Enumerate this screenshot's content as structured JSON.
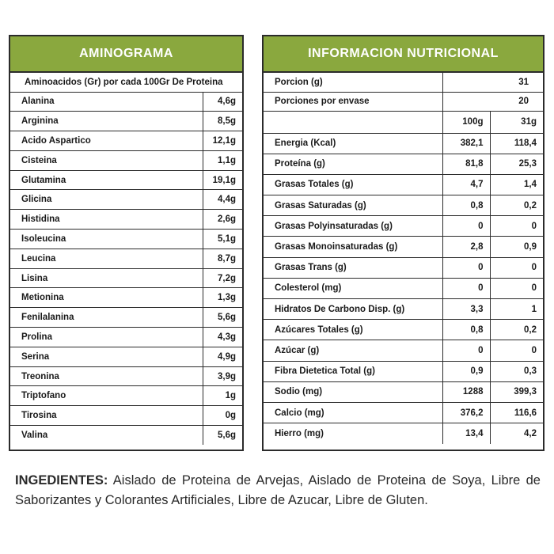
{
  "aminograma": {
    "title": "AMINOGRAMA",
    "subtitle": "Aminoacidos (Gr) por cada 100Gr De Proteina",
    "rows": [
      {
        "name": "Alanina",
        "value": "4,6g"
      },
      {
        "name": "Arginina",
        "value": "8,5g"
      },
      {
        "name": "Acido Aspartico",
        "value": "12,1g"
      },
      {
        "name": "Cisteina",
        "value": "1,1g"
      },
      {
        "name": "Glutamina",
        "value": "19,1g"
      },
      {
        "name": "Glicina",
        "value": "4,4g"
      },
      {
        "name": "Histidina",
        "value": "2,6g"
      },
      {
        "name": "Isoleucina",
        "value": "5,1g"
      },
      {
        "name": "Leucina",
        "value": "8,7g"
      },
      {
        "name": "Lisina",
        "value": "7,2g"
      },
      {
        "name": "Metionina",
        "value": "1,3g"
      },
      {
        "name": "Fenilalanina",
        "value": "5,6g"
      },
      {
        "name": "Prolina",
        "value": "4,3g"
      },
      {
        "name": "Serina",
        "value": "4,9g"
      },
      {
        "name": "Treonina",
        "value": "3,9g"
      },
      {
        "name": "Triptofano",
        "value": "1g"
      },
      {
        "name": "Tirosina",
        "value": "0g"
      },
      {
        "name": "Valina",
        "value": "5,6g"
      }
    ]
  },
  "nutricional": {
    "title": "INFORMACION NUTRICIONAL",
    "porcion_label": "Porcion (g)",
    "porcion_value": "31",
    "porciones_label": "Porciones por envase",
    "porciones_value": "20",
    "col1_header": "100g",
    "col2_header": "31g",
    "rows": [
      {
        "name": "Energia (Kcal)",
        "v100": "382,1",
        "v31": "118,4"
      },
      {
        "name": "Proteína (g)",
        "v100": "81,8",
        "v31": "25,3"
      },
      {
        "name": "Grasas Totales (g)",
        "v100": "4,7",
        "v31": "1,4"
      },
      {
        "name": "Grasas Saturadas (g)",
        "v100": "0,8",
        "v31": "0,2"
      },
      {
        "name": "Grasas Polyinsaturadas (g)",
        "v100": "0",
        "v31": "0"
      },
      {
        "name": "Grasas Monoinsaturadas (g)",
        "v100": "2,8",
        "v31": "0,9"
      },
      {
        "name": "Grasas Trans (g)",
        "v100": "0",
        "v31": "0"
      },
      {
        "name": "Colesterol (mg)",
        "v100": "0",
        "v31": "0"
      },
      {
        "name": "Hidratos De Carbono Disp. (g)",
        "v100": "3,3",
        "v31": "1"
      },
      {
        "name": "Azúcares Totales (g)",
        "v100": "0,8",
        "v31": "0,2"
      },
      {
        "name": "Azúcar (g)",
        "v100": "0",
        "v31": "0"
      },
      {
        "name": "Fibra Dietetica Total (g)",
        "v100": "0,9",
        "v31": "0,3"
      },
      {
        "name": "Sodio (mg)",
        "v100": "1288",
        "v31": "399,3"
      },
      {
        "name": "Calcio (mg)",
        "v100": "376,2",
        "v31": "116,6"
      },
      {
        "name": "Hierro (mg)",
        "v100": "13,4",
        "v31": "4,2"
      }
    ]
  },
  "ingredients": {
    "label": "INGEDIENTES:",
    "text": " Aislado de Proteina de Arvejas,  Aislado de Proteina de Soya, Libre de Saborizantes y Colorantes Artificiales, Libre de Azucar, Libre de Gluten."
  },
  "colors": {
    "header_green": "#8aa83e",
    "border": "#2b2b2b"
  }
}
